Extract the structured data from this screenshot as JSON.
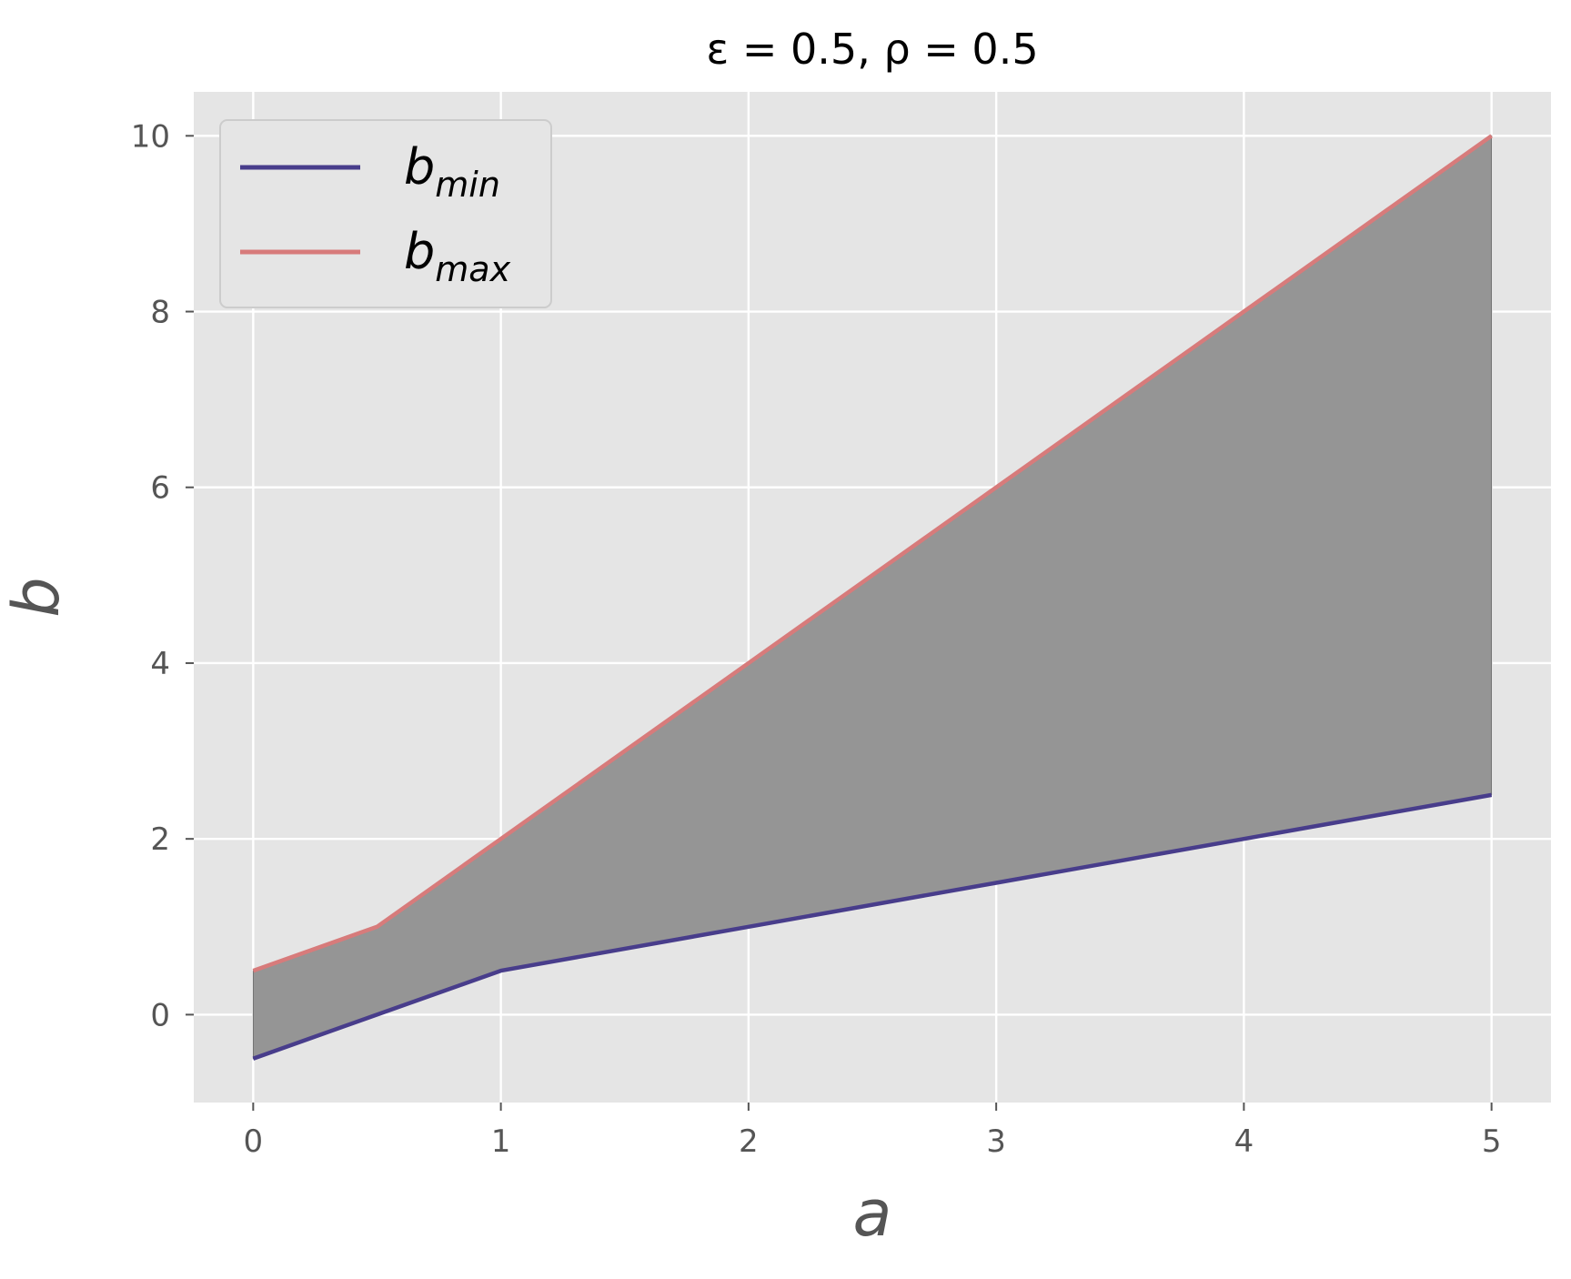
{
  "chart_data": {
    "type": "area",
    "title": "ε = 0.5, ρ = 0.5",
    "xlabel": "a",
    "ylabel": "b",
    "xlim": [
      -0.24,
      5.24
    ],
    "ylim": [
      -1.0,
      10.5
    ],
    "xticks": [
      0,
      1,
      2,
      3,
      4,
      5
    ],
    "yticks": [
      0,
      2,
      4,
      6,
      8,
      10
    ],
    "grid": true,
    "legend_position": "top-left",
    "colors": {
      "background": "#E5E5E5",
      "grid": "#FFFFFF",
      "fill": "#959595",
      "b_min": "#483D8B",
      "b_max": "#D77B7B"
    },
    "x": [
      0,
      0.5,
      1,
      2,
      3,
      4,
      5
    ],
    "series": [
      {
        "name": "b_min",
        "base": "b",
        "sub": "min",
        "values": [
          -0.5,
          0.0,
          0.5,
          1.0,
          1.5,
          2.0,
          2.5
        ]
      },
      {
        "name": "b_max",
        "base": "b",
        "sub": "max",
        "values": [
          0.5,
          1.0,
          2.0,
          4.0,
          6.0,
          8.0,
          10.0
        ]
      }
    ],
    "fill_between": [
      "b_min",
      "b_max"
    ]
  }
}
